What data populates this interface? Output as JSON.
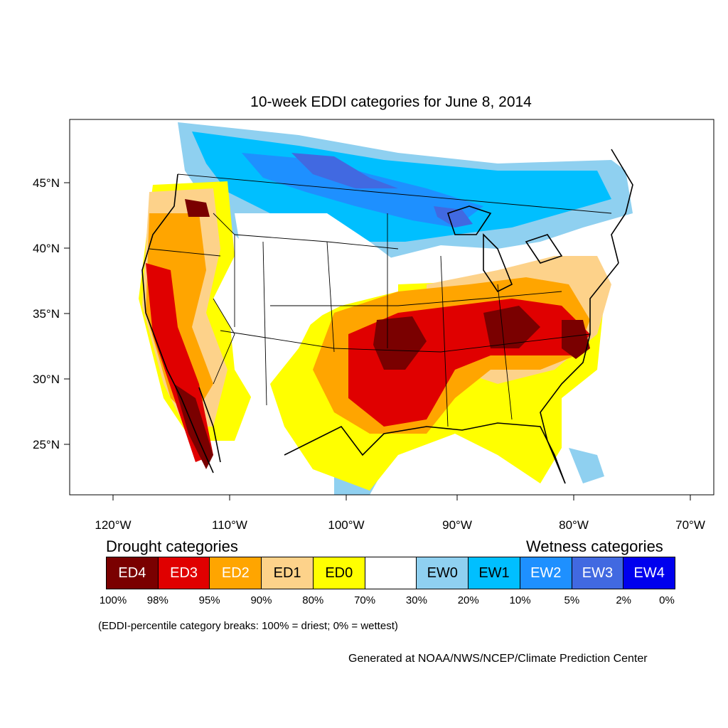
{
  "title": "10-week EDDI categories for June 8, 2014",
  "map": {
    "lat_labels": [
      "45°N",
      "40°N",
      "35°N",
      "30°N",
      "25°N"
    ],
    "lon_labels": [
      "120°W",
      "110°W",
      "100°W",
      "90°W",
      "80°W",
      "70°W"
    ]
  },
  "legend": {
    "drought_heading": "Drought categories",
    "wetness_heading": "Wetness categories",
    "categories": [
      {
        "label": "ED4",
        "color": "#7a0000",
        "text_color": "#ffffff"
      },
      {
        "label": "ED3",
        "color": "#e00000",
        "text_color": "#ffffff"
      },
      {
        "label": "ED2",
        "color": "#ffa500",
        "text_color": "#ffffff"
      },
      {
        "label": "ED1",
        "color": "#fdd28a",
        "text_color": "#000000"
      },
      {
        "label": "ED0",
        "color": "#ffff00",
        "text_color": "#000000"
      },
      {
        "label": "",
        "color": "#ffffff",
        "text_color": "#000000"
      },
      {
        "label": "EW0",
        "color": "#8fd0f0",
        "text_color": "#000000"
      },
      {
        "label": "EW1",
        "color": "#00bfff",
        "text_color": "#000000"
      },
      {
        "label": "EW2",
        "color": "#1e90ff",
        "text_color": "#ffffff"
      },
      {
        "label": "EW3",
        "color": "#4169e1",
        "text_color": "#ffffff"
      },
      {
        "label": "EW4",
        "color": "#0000ee",
        "text_color": "#ffffff"
      }
    ],
    "percent_breaks": [
      "100%",
      "98%",
      "95%",
      "90%",
      "80%",
      "70%",
      "30%",
      "20%",
      "10%",
      "5%",
      "2%",
      "0%"
    ]
  },
  "footnote": "(EDDI-percentile category breaks: 100% = driest; 0% = wettest)",
  "credit": "Generated at NOAA/NWS/NCEP/Climate Prediction Center"
}
